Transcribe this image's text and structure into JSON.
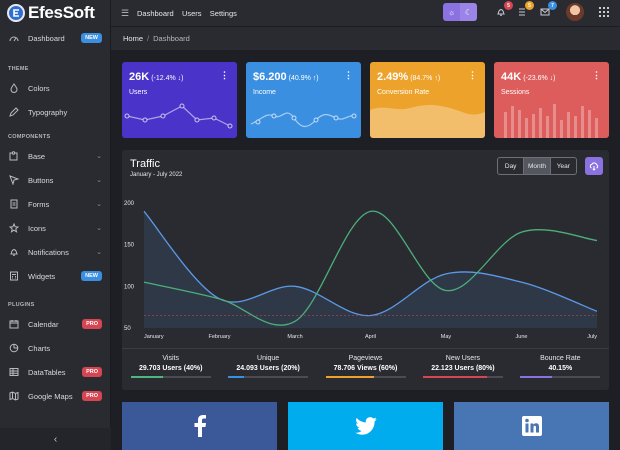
{
  "brand": {
    "name": "EfesSoft"
  },
  "sidebar": {
    "dashboard": {
      "label": "Dashboard",
      "badge": "NEW"
    },
    "sections": {
      "theme": "THEME",
      "components": "COMPONENTS",
      "plugins": "PLUGINS"
    },
    "theme_items": [
      {
        "label": "Colors"
      },
      {
        "label": "Typography"
      }
    ],
    "component_items": [
      {
        "label": "Base"
      },
      {
        "label": "Buttons"
      },
      {
        "label": "Forms"
      },
      {
        "label": "Icons"
      },
      {
        "label": "Notifications"
      },
      {
        "label": "Widgets",
        "badge": "NEW"
      }
    ],
    "plugin_items": [
      {
        "label": "Calendar",
        "badge": "PRO"
      },
      {
        "label": "Charts"
      },
      {
        "label": "DataTables",
        "badge": "PRO"
      },
      {
        "label": "Google Maps",
        "badge": "PRO"
      }
    ]
  },
  "header": {
    "nav": [
      "Dashboard",
      "Users",
      "Settings"
    ],
    "notification_count": "5",
    "tasks_count": "5",
    "messages_count": "7"
  },
  "breadcrumb": {
    "home": "Home",
    "sep": "/",
    "current": "Dashboard"
  },
  "cards": [
    {
      "value": "26K",
      "delta": "(-12.4% ↓)",
      "label": "Users",
      "color": "#4a33c8"
    },
    {
      "value": "$6.200",
      "delta": "(40.9% ↑)",
      "label": "Income",
      "color": "#3b8fe0"
    },
    {
      "value": "2.49%",
      "delta": "(84.7% ↑)",
      "label": "Conversion Rate",
      "color": "#eca22b"
    },
    {
      "value": "44K",
      "delta": "(-23.6% ↓)",
      "label": "Sessions",
      "color": "#dd5d5c"
    }
  ],
  "traffic": {
    "title": "Traffic",
    "subtitle": "January - July 2022",
    "segments": [
      "Day",
      "Month",
      "Year"
    ],
    "active_segment": "Month"
  },
  "chart_data": {
    "type": "line",
    "x": [
      "January",
      "February",
      "March",
      "April",
      "May",
      "June",
      "July"
    ],
    "ylim": [
      50,
      200
    ],
    "yticks": [
      50,
      100,
      150,
      200
    ],
    "grid": false,
    "series": [
      {
        "color": "#5b9ae8",
        "values": [
          190,
          85,
          100,
          65,
          115,
          105,
          70
        ],
        "fill": true
      },
      {
        "color": "#4caf7a",
        "values": [
          105,
          85,
          58,
          190,
          95,
          165,
          155
        ]
      },
      {
        "color": "#d64552",
        "dashed": true,
        "values": [
          65,
          65,
          65,
          65,
          65,
          65,
          65
        ]
      }
    ]
  },
  "footer_stats": [
    {
      "title": "Visits",
      "value": "29.703 Users (40%)",
      "percent": 40,
      "color": "#4fb583"
    },
    {
      "title": "Unique",
      "value": "24.093 Users (20%)",
      "percent": 20,
      "color": "#3b8fe0"
    },
    {
      "title": "Pageviews",
      "value": "78.706 Views (60%)",
      "percent": 60,
      "color": "#eca22b"
    },
    {
      "title": "New Users",
      "value": "22.123 Users (80%)",
      "percent": 80,
      "color": "#d64552"
    },
    {
      "title": "Bounce Rate",
      "value": "40.15%",
      "percent": 40,
      "color": "#8b72e0"
    }
  ],
  "social": [
    {
      "name": "facebook-icon"
    },
    {
      "name": "twitter-icon"
    },
    {
      "name": "linkedin-icon"
    }
  ]
}
